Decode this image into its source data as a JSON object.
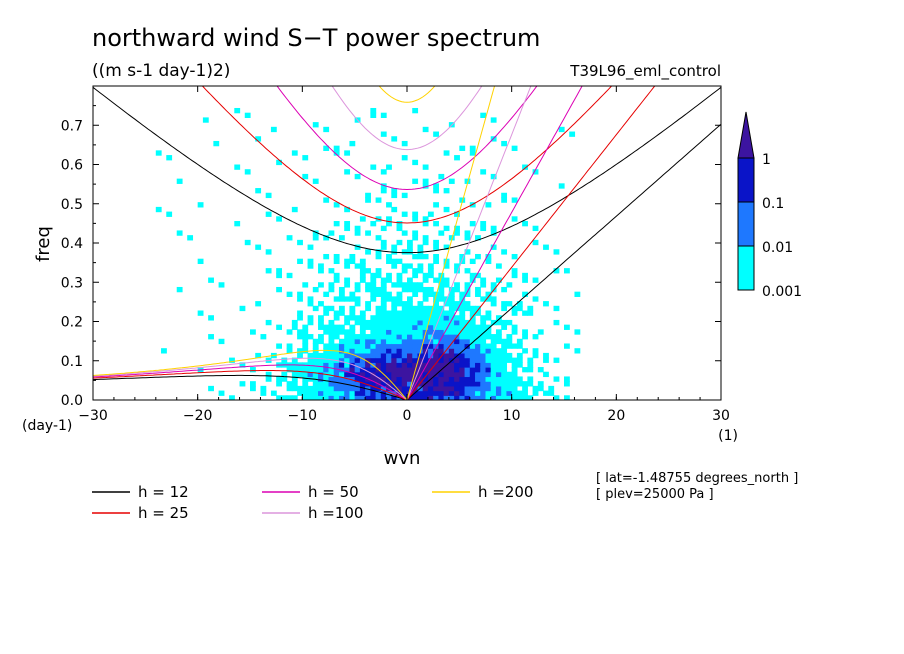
{
  "title": "northward wind S−T power spectrum",
  "units": "((m s-1 day-1)2)",
  "dataset": "T39L96_eml_control",
  "chart_data": {
    "type": "heatmap",
    "xlabel": "wvn",
    "ylabel": "freq",
    "x_unit": "(1)",
    "y_unit": "(day-1)",
    "xlim": [
      -30,
      30
    ],
    "ylim": [
      0,
      0.8
    ],
    "x_ticks": [
      "−30",
      "−20",
      "−10",
      "0",
      "10",
      "20",
      "30"
    ],
    "y_ticks": [
      "0.0",
      "0.1",
      "0.2",
      "0.3",
      "0.4",
      "0.5",
      "0.6",
      "0.7"
    ],
    "colorbar": {
      "levels": [
        "0.001",
        "0.01",
        "0.1",
        "1"
      ],
      "colors": [
        "#00ffff",
        "#1e78ff",
        "#0a14c8",
        "#3c14a0"
      ]
    },
    "dispersion_curves": [
      {
        "label": "h = 12",
        "h": 12,
        "color": "#000000"
      },
      {
        "label": "h = 25",
        "h": 25,
        "color": "#e60000"
      },
      {
        "label": "h = 50",
        "h": 50,
        "color": "#dc00b4"
      },
      {
        "label": "h =100",
        "h": 100,
        "color": "#dc96dc"
      },
      {
        "label": "h =200",
        "h": 200,
        "color": "#ffd200"
      }
    ]
  },
  "annotations": [
    "[ lat=-1.48755 degrees_north ]",
    "[ plev=25000 Pa ]"
  ]
}
